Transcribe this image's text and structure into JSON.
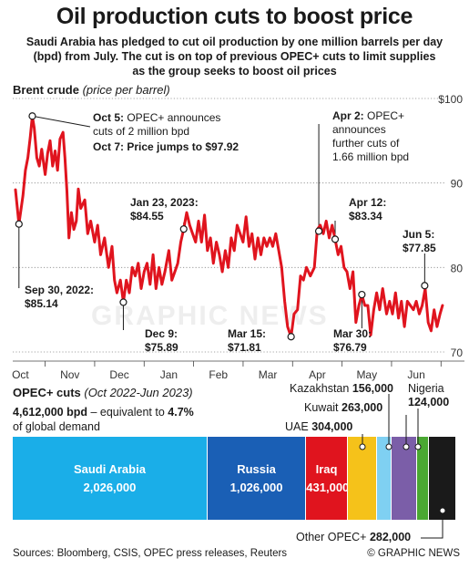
{
  "title": "Oil production cuts to boost price",
  "subtitle_lines": [
    "Saudi Arabia has pledged to cut oil production by one million barrels per day",
    "(bpd) from July. The cut is on top of previous OPEC+ cuts to limit supplies",
    "as the group seeks to boost oil prices"
  ],
  "brent": {
    "label": "Brent crude",
    "unit": "(price per barrel)"
  },
  "chart_data": {
    "type": "line",
    "ylim": [
      70,
      100
    ],
    "y_ticks": [
      70,
      80,
      90,
      100
    ],
    "y_tick_labels": [
      "70",
      "80",
      "90",
      "$100"
    ],
    "x_ticks": [
      "Oct",
      "Nov",
      "Dec",
      "Jan",
      "Feb",
      "Mar",
      "Apr",
      "May",
      "Jun"
    ],
    "x_range_months": [
      -0.1,
      8.55
    ],
    "grid": true,
    "series": [
      {
        "color": "#e0141e",
        "points": [
          [
            -0.1,
            89.2
          ],
          [
            -0.03,
            85.14
          ],
          [
            0.05,
            88.5
          ],
          [
            0.1,
            91.5
          ],
          [
            0.15,
            93.0
          ],
          [
            0.2,
            95.5
          ],
          [
            0.24,
            97.92
          ],
          [
            0.28,
            96.5
          ],
          [
            0.33,
            93.0
          ],
          [
            0.38,
            92.0
          ],
          [
            0.43,
            94.0
          ],
          [
            0.5,
            91.0
          ],
          [
            0.55,
            93.5
          ],
          [
            0.6,
            95.0
          ],
          [
            0.65,
            92.0
          ],
          [
            0.7,
            93.8
          ],
          [
            0.75,
            91.5
          ],
          [
            0.8,
            95.2
          ],
          [
            0.86,
            96.0
          ],
          [
            0.9,
            93.0
          ],
          [
            0.94,
            89.0
          ],
          [
            0.98,
            83.5
          ],
          [
            1.03,
            86.5
          ],
          [
            1.08,
            84.5
          ],
          [
            1.13,
            85.5
          ],
          [
            1.17,
            89.3
          ],
          [
            1.22,
            87.0
          ],
          [
            1.3,
            88.0
          ],
          [
            1.36,
            84.0
          ],
          [
            1.42,
            85.5
          ],
          [
            1.5,
            83.0
          ],
          [
            1.56,
            85.0
          ],
          [
            1.62,
            81.5
          ],
          [
            1.7,
            83.5
          ],
          [
            1.78,
            80.0
          ],
          [
            1.85,
            82.5
          ],
          [
            1.9,
            78.5
          ],
          [
            1.95,
            77.0
          ],
          [
            2.02,
            78.5
          ],
          [
            2.08,
            75.89
          ],
          [
            2.14,
            78.5
          ],
          [
            2.2,
            77.0
          ],
          [
            2.26,
            80.0
          ],
          [
            2.32,
            79.0
          ],
          [
            2.38,
            80.5
          ],
          [
            2.44,
            77.5
          ],
          [
            2.5,
            79.5
          ],
          [
            2.56,
            80.5
          ],
          [
            2.62,
            78.0
          ],
          [
            2.68,
            81.5
          ],
          [
            2.74,
            77.5
          ],
          [
            2.8,
            80.0
          ],
          [
            2.86,
            78.0
          ],
          [
            2.92,
            79.5
          ],
          [
            3.0,
            82.0
          ],
          [
            3.06,
            78.5
          ],
          [
            3.12,
            79.5
          ],
          [
            3.18,
            80.5
          ],
          [
            3.24,
            83.0
          ],
          [
            3.3,
            84.55
          ],
          [
            3.36,
            86.5
          ],
          [
            3.42,
            85.0
          ],
          [
            3.48,
            84.0
          ],
          [
            3.54,
            83.0
          ],
          [
            3.6,
            85.5
          ],
          [
            3.66,
            83.0
          ],
          [
            3.72,
            86.2
          ],
          [
            3.78,
            82.0
          ],
          [
            3.84,
            83.5
          ],
          [
            3.9,
            80.5
          ],
          [
            3.96,
            83.0
          ],
          [
            4.02,
            81.5
          ],
          [
            4.08,
            79.5
          ],
          [
            4.14,
            82.0
          ],
          [
            4.2,
            80.0
          ],
          [
            4.26,
            83.5
          ],
          [
            4.32,
            82.0
          ],
          [
            4.38,
            85.0
          ],
          [
            4.44,
            84.0
          ],
          [
            4.5,
            83.0
          ],
          [
            4.56,
            86.0
          ],
          [
            4.62,
            82.5
          ],
          [
            4.68,
            84.0
          ],
          [
            4.74,
            81.0
          ],
          [
            4.8,
            83.5
          ],
          [
            4.86,
            81.5
          ],
          [
            4.92,
            83.5
          ],
          [
            4.98,
            82.5
          ],
          [
            5.04,
            83.5
          ],
          [
            5.1,
            82.5
          ],
          [
            5.16,
            84.0
          ],
          [
            5.22,
            82.0
          ],
          [
            5.28,
            80.0
          ],
          [
            5.34,
            76.0
          ],
          [
            5.4,
            73.0
          ],
          [
            5.47,
            71.81
          ],
          [
            5.53,
            74.5
          ],
          [
            5.6,
            75.0
          ],
          [
            5.66,
            79.0
          ],
          [
            5.72,
            78.5
          ],
          [
            5.78,
            80.0
          ],
          [
            5.86,
            79.0
          ],
          [
            5.94,
            80.0
          ],
          [
            6.0,
            84.5
          ],
          [
            6.06,
            85.0
          ],
          [
            6.12,
            84.0
          ],
          [
            6.18,
            85.5
          ],
          [
            6.24,
            83.5
          ],
          [
            6.3,
            85.0
          ],
          [
            6.36,
            83.34
          ],
          [
            6.42,
            81.5
          ],
          [
            6.48,
            82.5
          ],
          [
            6.54,
            80.0
          ],
          [
            6.6,
            79.5
          ],
          [
            6.66,
            77.5
          ],
          [
            6.72,
            79.5
          ],
          [
            6.78,
            73.5
          ],
          [
            6.84,
            75.5
          ],
          [
            6.9,
            76.79
          ],
          [
            6.96,
            75.5
          ],
          [
            7.02,
            75.5
          ],
          [
            7.08,
            72.0
          ],
          [
            7.14,
            75.0
          ],
          [
            7.2,
            77.0
          ],
          [
            7.26,
            75.0
          ],
          [
            7.32,
            77.5
          ],
          [
            7.4,
            74.5
          ],
          [
            7.46,
            76.0
          ],
          [
            7.52,
            74.5
          ],
          [
            7.58,
            77.0
          ],
          [
            7.64,
            74.0
          ],
          [
            7.7,
            76.0
          ],
          [
            7.76,
            73.0
          ],
          [
            7.82,
            76.0
          ],
          [
            7.88,
            75.5
          ],
          [
            7.94,
            75.0
          ],
          [
            8.0,
            76.0
          ],
          [
            8.06,
            74.5
          ],
          [
            8.12,
            75.5
          ],
          [
            8.18,
            77.5
          ],
          [
            8.24,
            73.5
          ],
          [
            8.3,
            72.5
          ],
          [
            8.36,
            75.0
          ],
          [
            8.42,
            73.0
          ],
          [
            8.48,
            74.5
          ],
          [
            8.53,
            75.5
          ]
        ]
      }
    ],
    "markers": [
      {
        "x": -0.03,
        "y": 85.14
      },
      {
        "x": 0.24,
        "y": 97.92
      },
      {
        "x": 2.08,
        "y": 75.89
      },
      {
        "x": 3.3,
        "y": 84.55
      },
      {
        "x": 5.47,
        "y": 71.81
      },
      {
        "x": 6.03,
        "y": 84.3
      },
      {
        "x": 6.36,
        "y": 83.34
      },
      {
        "x": 6.9,
        "y": 76.79
      },
      {
        "x": 8.17,
        "y": 77.85
      }
    ],
    "annotations": [
      {
        "lines": [
          "Oct 5: OPEC+ announces",
          "cuts of 2 million bpd"
        ],
        "bold_prefix": "Oct 5:"
      },
      {
        "lines": [
          "Oct 7: Price jumps to $97.92"
        ],
        "bold_all": true
      },
      {
        "lines": [
          "Sep 30, 2022:",
          "$85.14"
        ],
        "bold_all": true
      },
      {
        "lines": [
          "Jan 23, 2023:",
          "$84.55"
        ],
        "bold_all": true
      },
      {
        "lines": [
          "Dec 9:",
          "$75.89"
        ],
        "bold_all": true
      },
      {
        "lines": [
          "Mar 15:",
          "$71.81"
        ],
        "bold_all": true
      },
      {
        "lines": [
          "Apr 2: OPEC+",
          "announces",
          "further cuts of",
          "1.66 million bpd"
        ],
        "bold_prefix": "Apr 2:"
      },
      {
        "lines": [
          "Apr 12:",
          "$83.34"
        ],
        "bold_all": true
      },
      {
        "lines": [
          "Mar 30:",
          "$76.79"
        ],
        "bold_all": true
      },
      {
        "lines": [
          "Jun 5:",
          "$77.85"
        ],
        "bold_all": true
      }
    ]
  },
  "opec": {
    "label": "OPEC+ cuts",
    "unit": "(Oct 2022-Jun 2023)",
    "total_value": "4,612,000 bpd",
    "total_mid": " – equivalent to ",
    "total_pct": "4.7%",
    "total_suffix": "of global demand",
    "segments": [
      {
        "name": "Saudi Arabia",
        "value": "2,026,000",
        "bpd": 2026000,
        "color": "#1aaee8"
      },
      {
        "name": "Russia",
        "value": "1,026,000",
        "bpd": 1026000,
        "color": "#1a5fb5"
      },
      {
        "name": "Iraq",
        "value": "431,000",
        "bpd": 431000,
        "color": "#e0141e"
      },
      {
        "name": "UAE",
        "value": "304,000",
        "bpd": 304000,
        "color": "#f5c21a"
      },
      {
        "name": "Kazakhstan",
        "value": "156,000",
        "bpd": 156000,
        "color": "#7fd0f2"
      },
      {
        "name": "Kuwait",
        "value": "263,000",
        "bpd": 263000,
        "color": "#7b5ea8"
      },
      {
        "name": "Nigeria",
        "value": "124,000",
        "bpd": 124000,
        "color": "#4aa832"
      },
      {
        "name": "Other OPEC+",
        "value": "282,000",
        "bpd": 282000,
        "color": "#1a1a1a"
      }
    ]
  },
  "watermark": "GRAPHIC NEWS",
  "sources": "Sources: Bloomberg, CSIS, OPEC press releases, Reuters",
  "credit": "© GRAPHIC NEWS"
}
